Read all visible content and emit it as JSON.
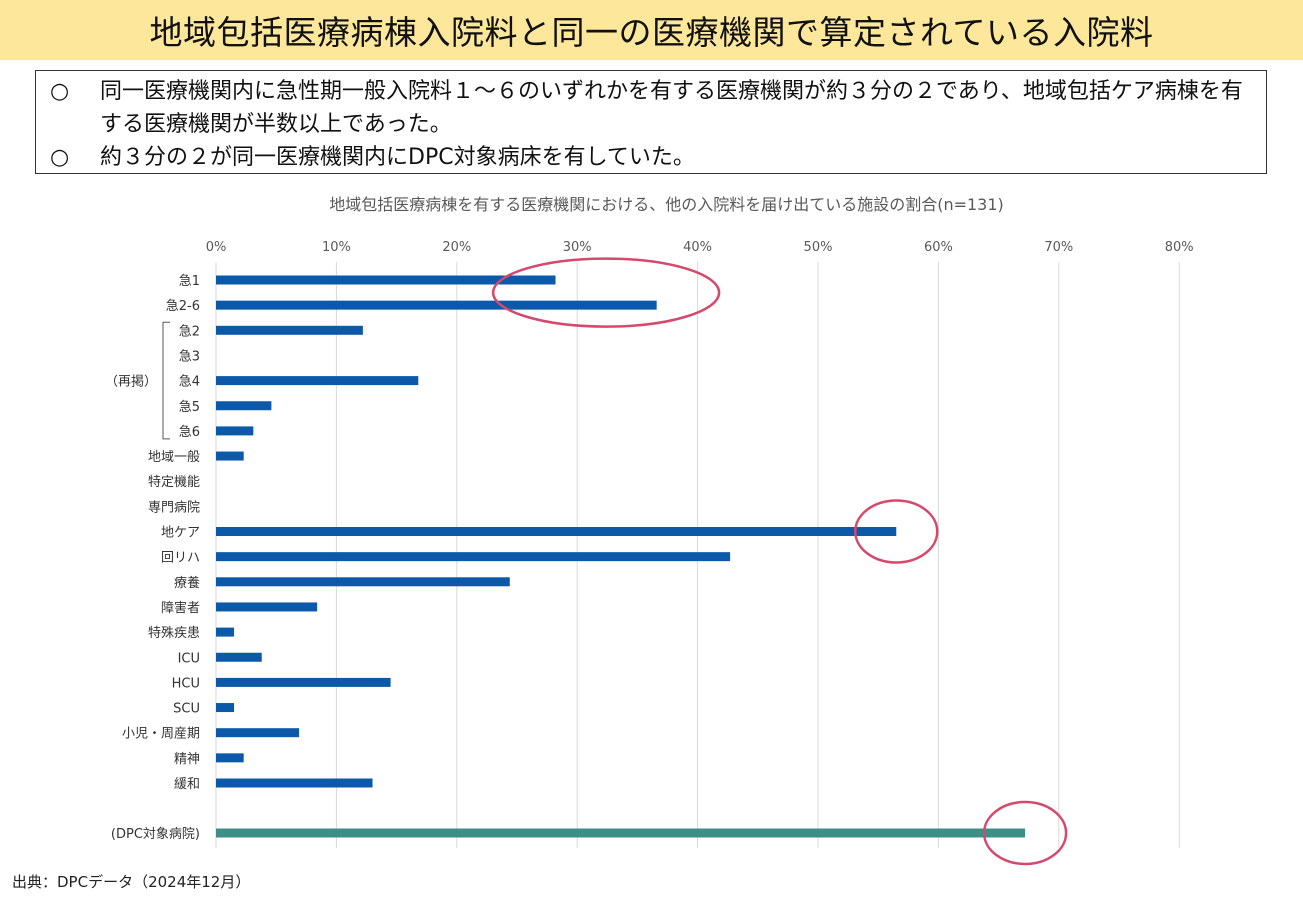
{
  "title": "地域包括医療病棟入院料と同一の医療機関で算定されている入院料",
  "summary": [
    {
      "mark": "○",
      "text": "同一医療機関内に急性期一般入院料１～６のいずれかを有する医療機関が約３分の２であり、地域包括ケア病棟を有する医療機関が半数以上であった。"
    },
    {
      "mark": "○",
      "text": "約３分の２が同一医療機関内にDPC対象病床を有していた。"
    }
  ],
  "source": "出典：DPCデータ（2024年12月）",
  "colors": {
    "title_band": "#fce79a",
    "bar_primary": "#0b59a8",
    "bar_dpc": "#3e8e88",
    "highlight_circle": "#d4496c",
    "grid": "#d9d9d9"
  },
  "chart_data": {
    "type": "bar",
    "orientation": "horizontal",
    "title": "地域包括医療病棟を有する医療機関における、他の入院料を届け出ている施設の割合(n=131)",
    "categories": [
      "急1",
      "急2-6",
      "急2",
      "急3",
      "急4",
      "急5",
      "急6",
      "地域一般",
      "特定機能",
      "専門病院",
      "地ケア",
      "回リハ",
      "療養",
      "障害者",
      "特殊疾患",
      "ICU",
      "HCU",
      "SCU",
      "小児・周産期",
      "精神",
      "緩和",
      "(DPC対象病院)"
    ],
    "values": [
      28.2,
      36.6,
      12.2,
      0,
      16.8,
      4.6,
      3.1,
      2.3,
      0,
      0,
      56.5,
      42.7,
      24.4,
      8.4,
      1.5,
      3.8,
      14.5,
      1.5,
      6.9,
      2.3,
      13.0,
      67.2
    ],
    "group_label": "（再掲）",
    "group_members": [
      "急2",
      "急3",
      "急4",
      "急5",
      "急6"
    ],
    "highlighted": [
      "急1",
      "急2-6",
      "地ケア",
      "(DPC対象病院)"
    ],
    "x_ticks": [
      "0%",
      "10%",
      "20%",
      "30%",
      "40%",
      "50%",
      "60%",
      "70%",
      "80%"
    ],
    "xlim": [
      0,
      80
    ],
    "grid": true,
    "axis_position": "top"
  }
}
